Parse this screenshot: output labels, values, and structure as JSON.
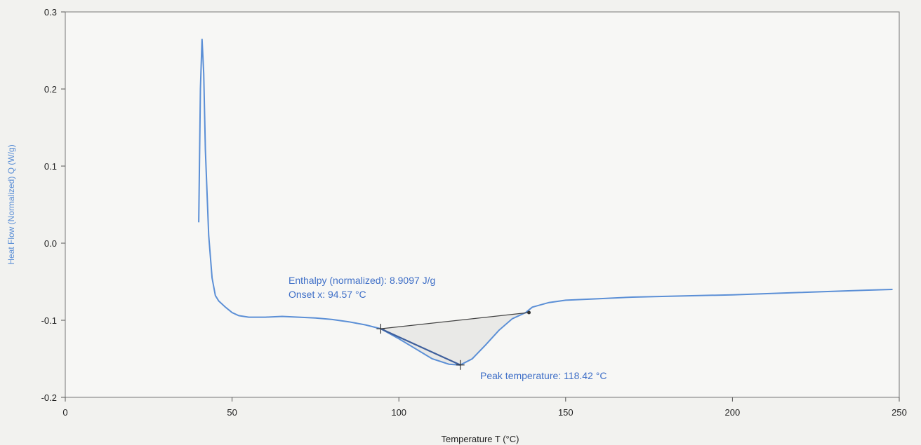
{
  "chart_data": {
    "type": "line",
    "xlabel": "Temperature T (°C)",
    "ylabel": "Heat Flow (Normalized) Q (W/g)",
    "xlim": [
      0,
      250
    ],
    "ylim": [
      -0.2,
      0.3
    ],
    "xticks": [
      0,
      50,
      100,
      150,
      200,
      250
    ],
    "yticks": [
      -0.2,
      -0.1,
      0.0,
      0.1,
      0.2,
      0.3
    ],
    "ytick_labels": [
      "-0.2",
      "-0.1",
      "0.0",
      "0.1",
      "0.2",
      "0.3"
    ],
    "grid": false,
    "colors": {
      "line": "#5b8fd6",
      "baseline": "#444444",
      "annotation": "#3f6fc7",
      "fill": "#d8d8d8"
    },
    "series": [
      {
        "x": [
          40.0,
          40.5,
          41.0,
          41.5,
          42.0,
          43.0,
          44.0,
          45.0,
          46.0,
          48.0,
          50.0,
          52.0,
          55.0,
          60.0,
          65.0,
          70.0,
          75.0,
          80.0,
          85.0,
          90.0,
          94.57,
          100.0,
          105.0,
          110.0,
          115.0,
          118.42,
          122.0,
          126.0,
          130.0,
          134.0,
          138.0,
          140.0,
          145.0,
          150.0,
          160.0,
          170.0,
          180.0,
          200.0,
          220.0,
          240.0,
          248.0
        ],
        "y": [
          0.027,
          0.2,
          0.265,
          0.22,
          0.12,
          0.01,
          -0.045,
          -0.068,
          -0.075,
          -0.083,
          -0.09,
          -0.094,
          -0.096,
          -0.096,
          -0.095,
          -0.096,
          -0.097,
          -0.099,
          -0.102,
          -0.106,
          -0.111,
          -0.124,
          -0.137,
          -0.15,
          -0.157,
          -0.158,
          -0.15,
          -0.132,
          -0.113,
          -0.098,
          -0.09,
          -0.083,
          -0.077,
          -0.074,
          -0.072,
          -0.07,
          -0.069,
          -0.067,
          -0.064,
          -0.061,
          -0.06
        ]
      }
    ],
    "integration": {
      "baseline_start": {
        "x": 94.57,
        "y": -0.111
      },
      "baseline_end": {
        "x": 139.0,
        "y": -0.09
      },
      "peak_marker": {
        "x": 118.42,
        "y": -0.158
      }
    },
    "annotations": {
      "enthalpy": "Enthalpy (normalized): 8.9097 J/g",
      "onset": "Onset x: 94.57 °C",
      "peak": "Peak temperature: 118.42 °C"
    }
  }
}
